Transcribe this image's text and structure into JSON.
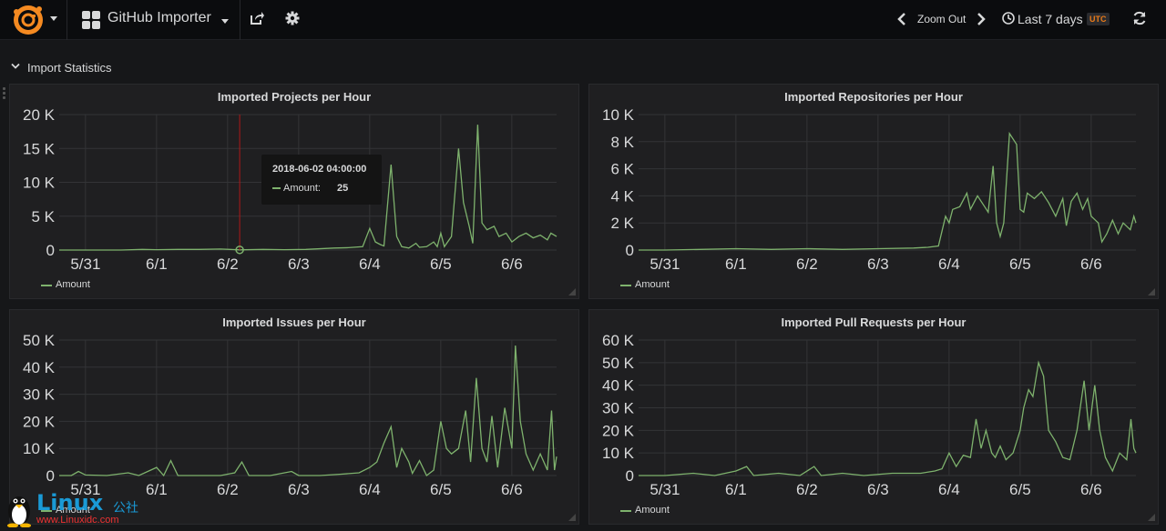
{
  "navbar": {
    "dashboard_title": "GitHub Importer",
    "zoom_out_label": "Zoom Out",
    "time_range_label": "Last 7 days",
    "timezone_badge": "UTC",
    "icons": [
      "grafana-logo-icon",
      "dashboard-grid-icon",
      "share-icon",
      "gear-icon",
      "chevron-left-icon",
      "chevron-right-icon",
      "clock-icon",
      "refresh-icon"
    ]
  },
  "row": {
    "title": "Import Statistics"
  },
  "colors": {
    "series": "#7eb26d",
    "grid": "#333437",
    "crosshair": "#b01818",
    "accent": "#eb7b18"
  },
  "tooltip": {
    "time": "2018-06-02 04:00:00",
    "series_name": "Amount:",
    "value": "25"
  },
  "watermark": {
    "logo_text": "Linux",
    "cn_text": "公社",
    "url": "www.Linuxidc.com"
  },
  "panels": [
    {
      "title": "Imported Projects per Hour",
      "legend": "Amount",
      "chart_data": {
        "type": "line",
        "title": "Imported Projects per Hour",
        "x_ticks": [
          "5/31",
          "6/1",
          "6/2",
          "6/3",
          "6/4",
          "6/5",
          "6/6"
        ],
        "y_ticks": [
          "0",
          "5 K",
          "10 K",
          "15 K",
          "20 K"
        ],
        "ylim": [
          0,
          20000
        ],
        "x_range_days": [
          -0.37,
          6.63
        ],
        "grid": true,
        "legend_position": "bottom-left",
        "series": [
          {
            "name": "Amount",
            "points": [
              [
                -0.37,
                0
              ],
              [
                0,
                0
              ],
              [
                0.5,
                0
              ],
              [
                0.8,
                100
              ],
              [
                1,
                50
              ],
              [
                1.3,
                100
              ],
              [
                1.6,
                100
              ],
              [
                1.9,
                150
              ],
              [
                2.17,
                25
              ],
              [
                2.5,
                100
              ],
              [
                2.8,
                50
              ],
              [
                3.1,
                100
              ],
              [
                3.5,
                300
              ],
              [
                3.7,
                350
              ],
              [
                3.9,
                500
              ],
              [
                4.0,
                3200
              ],
              [
                4.08,
                1200
              ],
              [
                4.15,
                800
              ],
              [
                4.2,
                600
              ],
              [
                4.3,
                12600
              ],
              [
                4.38,
                2000
              ],
              [
                4.45,
                500
              ],
              [
                4.55,
                300
              ],
              [
                4.65,
                1000
              ],
              [
                4.7,
                400
              ],
              [
                4.8,
                500
              ],
              [
                4.9,
                1200
              ],
              [
                4.95,
                500
              ],
              [
                5.0,
                2500
              ],
              [
                5.05,
                500
              ],
              [
                5.15,
                2000
              ],
              [
                5.25,
                15000
              ],
              [
                5.32,
                7000
              ],
              [
                5.4,
                3500
              ],
              [
                5.45,
                1000
              ],
              [
                5.52,
                18500
              ],
              [
                5.58,
                4000
              ],
              [
                5.65,
                3000
              ],
              [
                5.75,
                3500
              ],
              [
                5.82,
                2000
              ],
              [
                5.92,
                2500
              ],
              [
                6.0,
                1200
              ],
              [
                6.1,
                2000
              ],
              [
                6.2,
                2500
              ],
              [
                6.3,
                1800
              ],
              [
                6.4,
                2200
              ],
              [
                6.5,
                1500
              ],
              [
                6.55,
                2500
              ],
              [
                6.63,
                2000
              ]
            ]
          }
        ]
      }
    },
    {
      "title": "Imported Repositories per Hour",
      "legend": "Amount",
      "chart_data": {
        "type": "line",
        "title": "Imported Repositories per Hour",
        "x_ticks": [
          "5/31",
          "6/1",
          "6/2",
          "6/3",
          "6/4",
          "6/5",
          "6/6"
        ],
        "y_ticks": [
          "0",
          "2 K",
          "4 K",
          "6 K",
          "8 K",
          "10 K"
        ],
        "ylim": [
          0,
          10000
        ],
        "x_range_days": [
          -0.37,
          6.63
        ],
        "grid": true,
        "legend_position": "bottom-left",
        "series": [
          {
            "name": "Amount",
            "points": [
              [
                -0.37,
                0
              ],
              [
                0,
                0
              ],
              [
                0.5,
                50
              ],
              [
                1,
                100
              ],
              [
                1.5,
                50
              ],
              [
                2,
                100
              ],
              [
                2.5,
                50
              ],
              [
                3,
                100
              ],
              [
                3.5,
                150
              ],
              [
                3.7,
                200
              ],
              [
                3.85,
                300
              ],
              [
                3.95,
                2500
              ],
              [
                4.0,
                2000
              ],
              [
                4.05,
                3000
              ],
              [
                4.15,
                3200
              ],
              [
                4.25,
                4200
              ],
              [
                4.3,
                3000
              ],
              [
                4.4,
                4000
              ],
              [
                4.5,
                3200
              ],
              [
                4.55,
                2800
              ],
              [
                4.62,
                6200
              ],
              [
                4.67,
                2000
              ],
              [
                4.72,
                1000
              ],
              [
                4.77,
                2000
              ],
              [
                4.85,
                8600
              ],
              [
                4.95,
                7800
              ],
              [
                5.0,
                3000
              ],
              [
                5.05,
                2800
              ],
              [
                5.1,
                4200
              ],
              [
                5.2,
                3800
              ],
              [
                5.3,
                4300
              ],
              [
                5.4,
                3500
              ],
              [
                5.5,
                2500
              ],
              [
                5.6,
                3800
              ],
              [
                5.65,
                1800
              ],
              [
                5.72,
                3600
              ],
              [
                5.8,
                4200
              ],
              [
                5.88,
                3000
              ],
              [
                5.95,
                3800
              ],
              [
                6.0,
                2500
              ],
              [
                6.1,
                2000
              ],
              [
                6.15,
                600
              ],
              [
                6.22,
                1200
              ],
              [
                6.3,
                2200
              ],
              [
                6.38,
                1200
              ],
              [
                6.45,
                2000
              ],
              [
                6.55,
                1500
              ],
              [
                6.6,
                2500
              ],
              [
                6.63,
                2000
              ]
            ]
          }
        ]
      }
    },
    {
      "title": "Imported Issues per Hour",
      "legend": "Amount",
      "chart_data": {
        "type": "line",
        "title": "Imported Issues per Hour",
        "x_ticks": [
          "5/31",
          "6/1",
          "6/2",
          "6/3",
          "6/4",
          "6/5",
          "6/6"
        ],
        "y_ticks": [
          "0",
          "10 K",
          "20 K",
          "30 K",
          "40 K",
          "50 K"
        ],
        "ylim": [
          0,
          50000
        ],
        "x_range_days": [
          -0.37,
          6.63
        ],
        "grid": true,
        "legend_position": "bottom-left",
        "series": [
          {
            "name": "Amount",
            "points": [
              [
                -0.37,
                0
              ],
              [
                -0.2,
                0
              ],
              [
                -0.1,
                1500
              ],
              [
                0,
                200
              ],
              [
                0.3,
                0
              ],
              [
                0.6,
                1000
              ],
              [
                0.75,
                0
              ],
              [
                1,
                3000
              ],
              [
                1.1,
                0
              ],
              [
                1.2,
                5500
              ],
              [
                1.3,
                0
              ],
              [
                1.6,
                0
              ],
              [
                1.9,
                0
              ],
              [
                2.1,
                1000
              ],
              [
                2.2,
                5000
              ],
              [
                2.3,
                0
              ],
              [
                2.6,
                0
              ],
              [
                2.9,
                1500
              ],
              [
                3.0,
                0
              ],
              [
                3.3,
                0
              ],
              [
                3.6,
                500
              ],
              [
                3.85,
                1000
              ],
              [
                4.0,
                3000
              ],
              [
                4.1,
                5000
              ],
              [
                4.2,
                12000
              ],
              [
                4.3,
                18000
              ],
              [
                4.38,
                3000
              ],
              [
                4.45,
                10000
              ],
              [
                4.55,
                5000
              ],
              [
                4.6,
                800
              ],
              [
                4.7,
                5500
              ],
              [
                4.8,
                0
              ],
              [
                4.9,
                2000
              ],
              [
                5.0,
                20000
              ],
              [
                5.08,
                10000
              ],
              [
                5.15,
                8000
              ],
              [
                5.25,
                10000
              ],
              [
                5.35,
                24000
              ],
              [
                5.42,
                5000
              ],
              [
                5.5,
                36000
              ],
              [
                5.58,
                10000
              ],
              [
                5.65,
                5000
              ],
              [
                5.72,
                22000
              ],
              [
                5.8,
                3000
              ],
              [
                5.9,
                25000
              ],
              [
                6.0,
                10000
              ],
              [
                6.05,
                48000
              ],
              [
                6.12,
                20000
              ],
              [
                6.2,
                8000
              ],
              [
                6.3,
                2000
              ],
              [
                6.4,
                8000
              ],
              [
                6.5,
                2000
              ],
              [
                6.56,
                24000
              ],
              [
                6.6,
                2000
              ],
              [
                6.63,
                7000
              ]
            ]
          }
        ]
      }
    },
    {
      "title": "Imported Pull Requests per Hour",
      "legend": "Amount",
      "chart_data": {
        "type": "line",
        "title": "Imported Pull Requests per Hour",
        "x_ticks": [
          "5/31",
          "6/1",
          "6/2",
          "6/3",
          "6/4",
          "6/5",
          "6/6"
        ],
        "y_ticks": [
          "0",
          "10 K",
          "20 K",
          "30 K",
          "40 K",
          "50 K",
          "60 K"
        ],
        "ylim": [
          0,
          60000
        ],
        "x_range_days": [
          -0.37,
          6.63
        ],
        "grid": true,
        "legend_position": "bottom-left",
        "series": [
          {
            "name": "Amount",
            "points": [
              [
                -0.37,
                0
              ],
              [
                0,
                0
              ],
              [
                0.4,
                1000
              ],
              [
                0.7,
                0
              ],
              [
                1,
                2000
              ],
              [
                1.15,
                4000
              ],
              [
                1.25,
                0
              ],
              [
                1.6,
                1000
              ],
              [
                1.9,
                0
              ],
              [
                2.1,
                4000
              ],
              [
                2.2,
                0
              ],
              [
                2.5,
                1000
              ],
              [
                2.8,
                0
              ],
              [
                3.2,
                1000
              ],
              [
                3.6,
                1000
              ],
              [
                3.8,
                2000
              ],
              [
                3.9,
                3000
              ],
              [
                4.0,
                10000
              ],
              [
                4.1,
                4000
              ],
              [
                4.2,
                9000
              ],
              [
                4.3,
                8000
              ],
              [
                4.38,
                25000
              ],
              [
                4.45,
                12000
              ],
              [
                4.52,
                20000
              ],
              [
                4.6,
                10000
              ],
              [
                4.65,
                8000
              ],
              [
                4.72,
                13000
              ],
              [
                4.8,
                7000
              ],
              [
                4.9,
                10000
              ],
              [
                5.0,
                20000
              ],
              [
                5.05,
                30000
              ],
              [
                5.12,
                38000
              ],
              [
                5.18,
                35000
              ],
              [
                5.26,
                50000
              ],
              [
                5.33,
                44000
              ],
              [
                5.4,
                20000
              ],
              [
                5.5,
                15000
              ],
              [
                5.6,
                8000
              ],
              [
                5.7,
                7000
              ],
              [
                5.8,
                20000
              ],
              [
                5.9,
                42000
              ],
              [
                5.97,
                20000
              ],
              [
                6.05,
                40000
              ],
              [
                6.12,
                20000
              ],
              [
                6.2,
                8000
              ],
              [
                6.3,
                2000
              ],
              [
                6.4,
                10000
              ],
              [
                6.5,
                7000
              ],
              [
                6.56,
                25000
              ],
              [
                6.6,
                12000
              ],
              [
                6.63,
                10000
              ]
            ]
          }
        ]
      }
    }
  ]
}
